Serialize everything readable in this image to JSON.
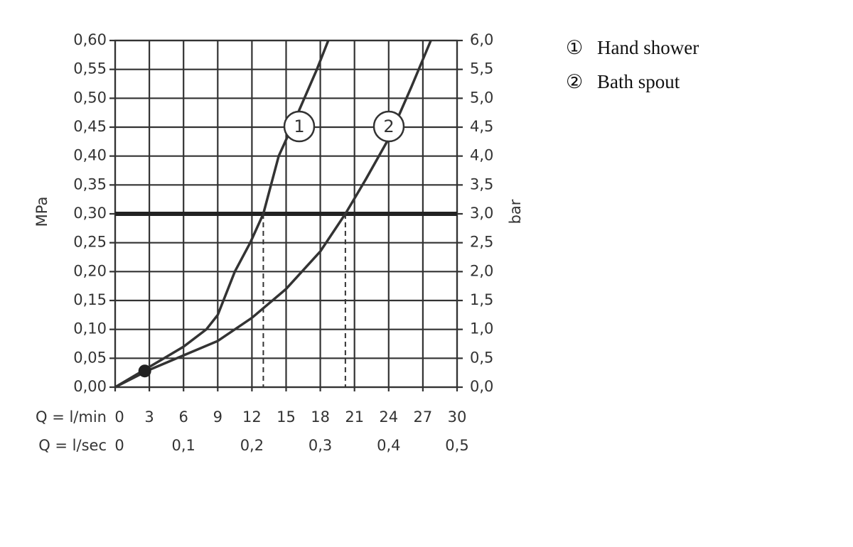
{
  "chart_data": {
    "type": "line",
    "x_label": "Q = l/min",
    "x2_label": "Q = l/sec",
    "y_label": "MPa",
    "y2_label": "bar",
    "xlim": [
      0,
      30
    ],
    "xticks": [
      0,
      3,
      6,
      9,
      12,
      15,
      18,
      21,
      24,
      27,
      30
    ],
    "x2lim": [
      0,
      0.5
    ],
    "x2ticks": [
      0,
      {
        "value": 0.1,
        "label": "0,1"
      },
      {
        "value": 0.2,
        "label": "0,2"
      },
      {
        "value": 0.3,
        "label": "0,3"
      },
      {
        "value": 0.4,
        "label": "0,4"
      },
      {
        "value": 0.5,
        "label": "0,5"
      }
    ],
    "ylim": [
      0,
      0.6
    ],
    "yticks": [
      {
        "value": 0,
        "label": "0,00"
      },
      {
        "value": 0.05,
        "label": "0,05"
      },
      {
        "value": 0.1,
        "label": "0,10"
      },
      {
        "value": 0.15,
        "label": "0,15"
      },
      {
        "value": 0.2,
        "label": "0,20"
      },
      {
        "value": 0.25,
        "label": "0,25"
      },
      {
        "value": 0.3,
        "label": "0,30"
      },
      {
        "value": 0.35,
        "label": "0,35"
      },
      {
        "value": 0.4,
        "label": "0,40"
      },
      {
        "value": 0.45,
        "label": "0,45"
      },
      {
        "value": 0.5,
        "label": "0,50"
      },
      {
        "value": 0.55,
        "label": "0,55"
      },
      {
        "value": 0.6,
        "label": "0,60"
      }
    ],
    "y2lim": [
      0,
      6
    ],
    "y2ticks": [
      {
        "value": 0,
        "label": "0,0"
      },
      {
        "value": 0.5,
        "label": "0,5"
      },
      {
        "value": 1,
        "label": "1,0"
      },
      {
        "value": 1.5,
        "label": "1,5"
      },
      {
        "value": 2,
        "label": "2,0"
      },
      {
        "value": 2.5,
        "label": "2,5"
      },
      {
        "value": 3,
        "label": "3,0"
      },
      {
        "value": 3.5,
        "label": "3,5"
      },
      {
        "value": 4,
        "label": "4,0"
      },
      {
        "value": 4.5,
        "label": "4,5"
      },
      {
        "value": 5,
        "label": "5,0"
      },
      {
        "value": 5.5,
        "label": "5,5"
      },
      {
        "value": 6,
        "label": "6,0"
      }
    ],
    "grid": true,
    "threshold": 0.3,
    "start_point": {
      "x": 2.6,
      "y": 0.028
    },
    "series": [
      {
        "name": "Hand shower",
        "legend_symbol": "①",
        "curve_label": "1",
        "color": "#333333",
        "x": [
          0,
          3,
          6,
          8,
          9,
          10.5,
          11.85,
          13,
          14.35,
          15.5,
          16.6,
          17.7,
          18.7
        ],
        "values": [
          0,
          0.035,
          0.07,
          0.1,
          0.125,
          0.2,
          0.25,
          0.3,
          0.4,
          0.45,
          0.5,
          0.55,
          0.6
        ],
        "drop_x": 13
      },
      {
        "name": "Bath spout",
        "legend_symbol": "②",
        "curve_label": "2",
        "color": "#333333",
        "x": [
          0,
          3,
          6,
          9,
          12,
          15,
          18,
          20.2,
          22,
          24,
          26,
          27.7
        ],
        "values": [
          0,
          0.03,
          0.055,
          0.08,
          0.12,
          0.17,
          0.235,
          0.3,
          0.36,
          0.43,
          0.52,
          0.6
        ],
        "drop_x": 20.2
      }
    ]
  }
}
